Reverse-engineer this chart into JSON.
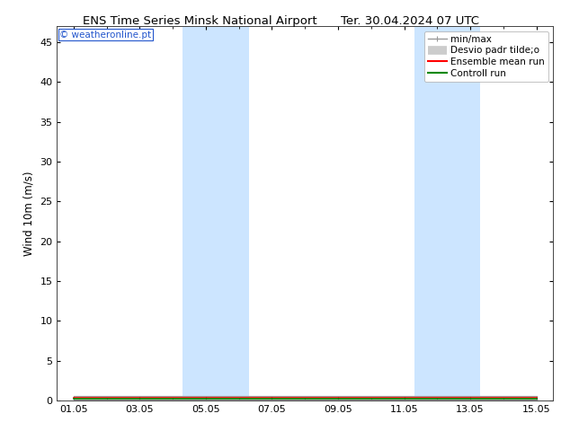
{
  "title_left": "ENS Time Series Minsk National Airport",
  "title_right": "Ter. 30.04.2024 07 UTC",
  "ylabel": "Wind 10m (m/s)",
  "watermark": "© weatheronline.pt",
  "ylim": [
    0,
    47
  ],
  "yticks": [
    0,
    5,
    10,
    15,
    20,
    25,
    30,
    35,
    40,
    45
  ],
  "xlim_min": -0.5,
  "xlim_max": 14.5,
  "xtick_labels": [
    "01.05",
    "03.05",
    "05.05",
    "07.05",
    "09.05",
    "11.05",
    "13.05",
    "15.05"
  ],
  "xtick_positions": [
    0,
    2,
    4,
    6,
    8,
    10,
    12,
    14
  ],
  "shade_bands": [
    {
      "xmin": 3.3,
      "xmax": 5.3
    },
    {
      "xmin": 10.3,
      "xmax": 12.3
    }
  ],
  "background_color": "#ffffff",
  "band_color": "#cce5ff",
  "legend_items": [
    {
      "label": "min/max",
      "color": "#999999",
      "lw": 1.0
    },
    {
      "label": "Desvio padr tilde;o",
      "color": "#cccccc",
      "lw": 7
    },
    {
      "label": "Ensemble mean run",
      "color": "#ff0000",
      "lw": 1.5
    },
    {
      "label": "Controll run",
      "color": "#008800",
      "lw": 1.5
    }
  ],
  "x_data": [
    0,
    1,
    2,
    3,
    4,
    5,
    6,
    7,
    8,
    9,
    10,
    11,
    12,
    13,
    14
  ],
  "mean_y": [
    0.3,
    0.3,
    0.3,
    0.3,
    0.3,
    0.3,
    0.3,
    0.3,
    0.3,
    0.3,
    0.3,
    0.3,
    0.3,
    0.3,
    0.3
  ],
  "ctrl_y": [
    0.2,
    0.2,
    0.2,
    0.2,
    0.2,
    0.2,
    0.2,
    0.2,
    0.2,
    0.2,
    0.2,
    0.2,
    0.2,
    0.2,
    0.2
  ],
  "minmax_y_low": [
    0.1,
    0.1,
    0.1,
    0.1,
    0.1,
    0.1,
    0.1,
    0.1,
    0.1,
    0.1,
    0.1,
    0.1,
    0.1,
    0.1,
    0.1
  ],
  "minmax_y_high": [
    0.5,
    0.5,
    0.5,
    0.5,
    0.5,
    0.5,
    0.5,
    0.5,
    0.5,
    0.5,
    0.5,
    0.5,
    0.5,
    0.5,
    0.5
  ],
  "title_fontsize": 9.5,
  "tick_fontsize": 8,
  "ylabel_fontsize": 8.5,
  "watermark_fontsize": 7.5,
  "legend_fontsize": 7.5
}
